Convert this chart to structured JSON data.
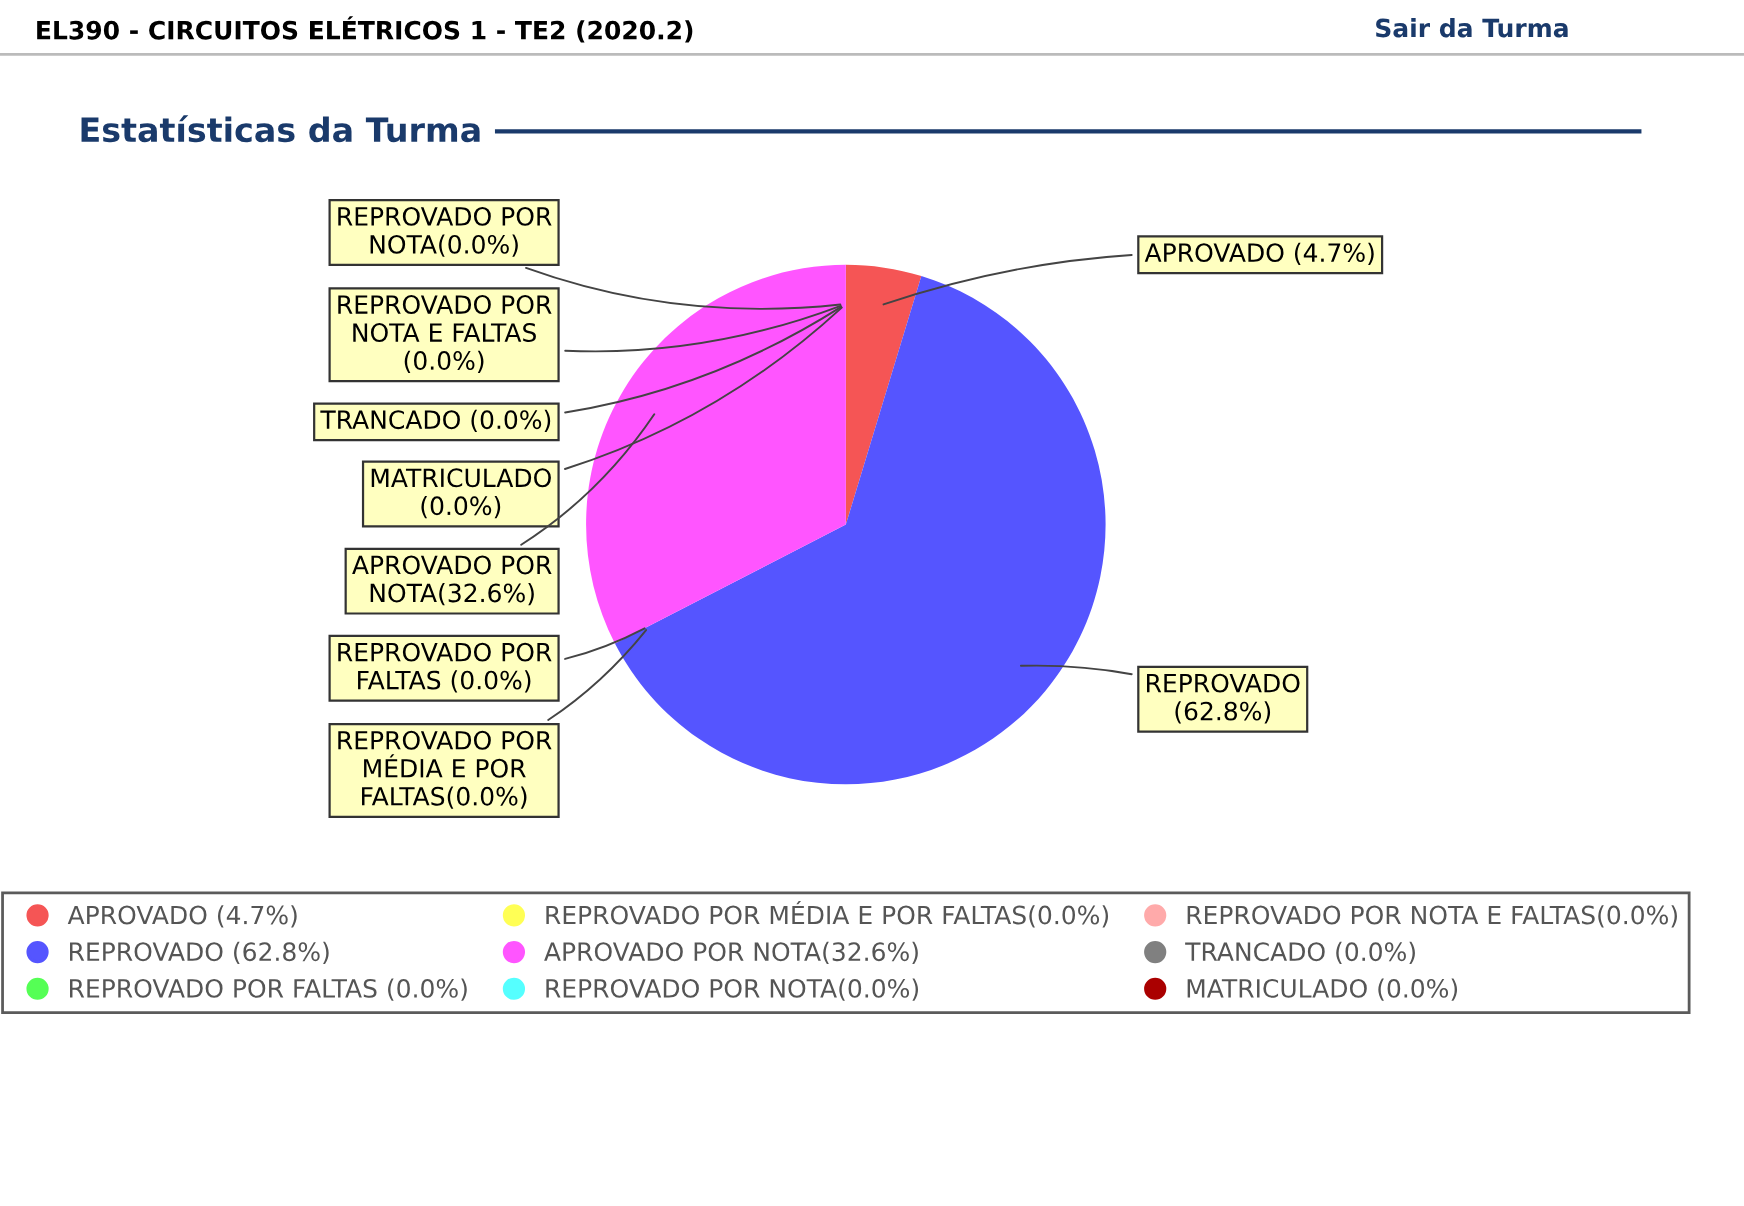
{
  "chart_data": {
    "type": "pie",
    "title": "Estatísticas da Turma",
    "subtitle": "EL390 - CIRCUITOS ELÉTRICOS 1 - TE2 (2020.2)",
    "annotations": [
      "Sair da Turma"
    ],
    "categories": [
      "APROVADO (4.7%)",
      "REPROVADO (62.8%)",
      "REPROVADO POR FALTAS (0.0%)",
      "REPROVADO POR MÉDIA E POR FALTAS(0.0%)",
      "APROVADO POR NOTA(32.6%)",
      "REPROVADO POR NOTA(0.0%)",
      "REPROVADO POR NOTA E FALTAS(0.0%)",
      "TRANCADO (0.0%)",
      "MATRICULADO (0.0%)"
    ],
    "values": [
      4.7,
      62.8,
      0,
      0,
      32.6,
      0,
      0,
      0,
      0
    ],
    "value_labels": [
      "APROVADO (4.7%)",
      "REPROVADO\n(62.8%)",
      "REPROVADO POR\nFALTAS (0.0%)",
      "REPROVADO POR\nMÉDIA E POR\nFALTAS(0.0%)",
      "APROVADO POR\nNOTA(32.6%)",
      "REPROVADO POR\nNOTA(0.0%)",
      "REPROVADO POR\nNOTA E FALTAS\n(0.0%)",
      "TRANCADO (0.0%)",
      "MATRICULADO\n(0.0%)"
    ],
    "colors": [
      "#f55555",
      "#5555ff",
      "#55ff55",
      "#ffff55",
      "#ff55ff",
      "#55ffff",
      "#ffaaaa",
      "#808080",
      "#aa0000"
    ],
    "legend": "bottom"
  }
}
